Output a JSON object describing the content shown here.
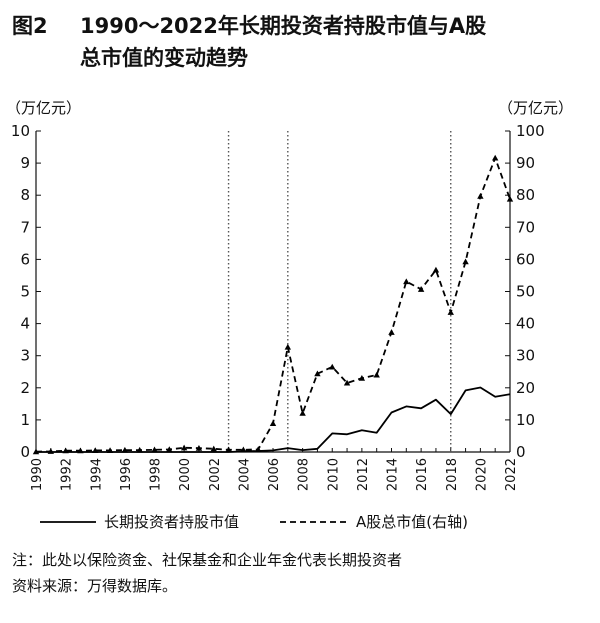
{
  "figure_label": "图2",
  "title_line1": "1990～2022年长期投资者持股市值与A股",
  "title_line2": "总市值的变动趋势",
  "notes": {
    "note": "注：此处以保险资金、社保基金和企业年金代表长期投资者",
    "source": "资料来源：万得数据库。"
  },
  "chart_data": {
    "type": "line",
    "title": "1990～2022年长期投资者持股市值与A股总市值的变动趋势",
    "x": [
      1990,
      1991,
      1992,
      1993,
      1994,
      1995,
      1996,
      1997,
      1998,
      1999,
      2000,
      2001,
      2002,
      2003,
      2004,
      2005,
      2006,
      2007,
      2008,
      2009,
      2010,
      2011,
      2012,
      2013,
      2014,
      2015,
      2016,
      2017,
      2018,
      2019,
      2020,
      2021,
      2022
    ],
    "x_tick_labels": [
      "1990",
      "1992",
      "1994",
      "1996",
      "1998",
      "2000",
      "2002",
      "2004",
      "2006",
      "2008",
      "2010",
      "2012",
      "2014",
      "2016",
      "2018",
      "2020",
      "2022"
    ],
    "y_left_unit": "（万亿元）",
    "y_right_unit": "（万亿元）",
    "y_left_range": [
      0,
      10
    ],
    "y_right_range": [
      0,
      100
    ],
    "y_left_ticks": [
      "0",
      "1",
      "2",
      "3",
      "4",
      "5",
      "6",
      "7",
      "8",
      "9",
      "10"
    ],
    "y_right_ticks": [
      "0",
      "10",
      "20",
      "30",
      "40",
      "50",
      "60",
      "70",
      "80",
      "90",
      "100"
    ],
    "vertical_reference_lines": [
      2003,
      2007,
      2018
    ],
    "series": [
      {
        "name": "长期投资者持股市值",
        "axis": "left",
        "style": "solid",
        "marker": "none",
        "values": [
          0,
          0,
          0,
          0,
          0,
          0,
          0,
          0,
          0,
          0,
          0,
          0,
          0,
          0,
          0.02,
          0.03,
          0.05,
          0.12,
          0.06,
          0.1,
          0.58,
          0.55,
          0.68,
          0.6,
          1.23,
          1.42,
          1.36,
          1.63,
          1.18,
          1.92,
          2.01,
          1.72,
          1.8
        ]
      },
      {
        "name": "A股总市值(右轴)",
        "axis": "right",
        "style": "dashed",
        "marker": "triangle",
        "values": [
          0.1,
          0.2,
          0.4,
          0.4,
          0.5,
          0.5,
          0.6,
          0.6,
          0.7,
          0.8,
          1.3,
          1.2,
          1.0,
          0.7,
          0.7,
          0.8,
          8.9,
          32.7,
          12.1,
          24.4,
          26.5,
          21.5,
          23.0,
          24.0,
          37.3,
          53.1,
          50.7,
          56.7,
          43.5,
          59.3,
          79.7,
          91.6,
          78.8
        ]
      }
    ],
    "legend_placement": "bottom",
    "grid": false
  }
}
